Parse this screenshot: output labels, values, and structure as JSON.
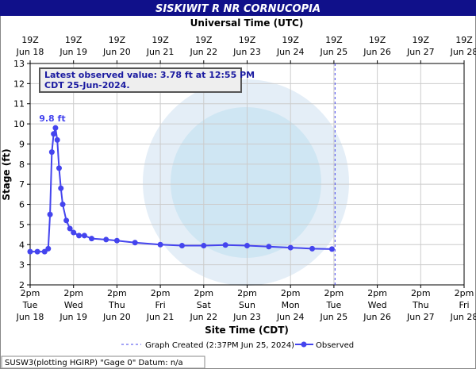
{
  "chart_data": {
    "type": "line",
    "title": "SISKIWIT R NR CORNUCOPIA",
    "x2_label": "Universal Time (UTC)",
    "xlabel": "Site Time (CDT)",
    "ylabel": "Stage (ft)",
    "annotation": [
      "Latest observed value: 3.78 ft at 12:55 PM",
      "CDT 25-Jun-2024."
    ],
    "peak_label": {
      "x": "2024-06-19T04:00",
      "y": 9.8,
      "label": "9.8 ft"
    },
    "graph_created": {
      "x": "2024-06-25T14:37",
      "label": "Graph Created (2:37PM Jun 25, 2024)"
    },
    "footer": "SUSW3(plotting HGIRP) \"Gage 0\" Datum: n/a",
    "grid": true,
    "xlim": [
      "2024-06-18T14:00",
      "2024-06-28T14:00"
    ],
    "ylim": [
      2,
      13
    ],
    "yticks": [
      2,
      3,
      4,
      5,
      6,
      7,
      8,
      9,
      10,
      11,
      12,
      13
    ],
    "xticks": [
      {
        "value": "2024-06-18T14:00",
        "label": "2pm\nTue\nJun 18"
      },
      {
        "value": "2024-06-19T14:00",
        "label": "2pm\nWed\nJun 19"
      },
      {
        "value": "2024-06-20T14:00",
        "label": "2pm\nThu\nJun 20"
      },
      {
        "value": "2024-06-21T14:00",
        "label": "2pm\nFri\nJun 21"
      },
      {
        "value": "2024-06-22T14:00",
        "label": "2pm\nSat\nJun 22"
      },
      {
        "value": "2024-06-23T14:00",
        "label": "2pm\nSun\nJun 23"
      },
      {
        "value": "2024-06-24T14:00",
        "label": "2pm\nMon\nJun 24"
      },
      {
        "value": "2024-06-25T14:00",
        "label": "2pm\nTue\nJun 25"
      },
      {
        "value": "2024-06-26T14:00",
        "label": "2pm\nWed\nJun 26"
      },
      {
        "value": "2024-06-27T14:00",
        "label": "2pm\nThu\nJun 27"
      },
      {
        "value": "2024-06-28T14:00",
        "label": "2pm\nFri\nJun 28"
      }
    ],
    "x2ticks": [
      {
        "value": "2024-06-18T14:00",
        "label": "19Z\nJun 18"
      },
      {
        "value": "2024-06-19T14:00",
        "label": "19Z\nJun 19"
      },
      {
        "value": "2024-06-20T14:00",
        "label": "19Z\nJun 20"
      },
      {
        "value": "2024-06-21T14:00",
        "label": "19Z\nJun 21"
      },
      {
        "value": "2024-06-22T14:00",
        "label": "19Z\nJun 22"
      },
      {
        "value": "2024-06-23T14:00",
        "label": "19Z\nJun 23"
      },
      {
        "value": "2024-06-24T14:00",
        "label": "19Z\nJun 24"
      },
      {
        "value": "2024-06-25T14:00",
        "label": "19Z\nJun 25"
      },
      {
        "value": "2024-06-26T14:00",
        "label": "19Z\nJun 26"
      },
      {
        "value": "2024-06-27T14:00",
        "label": "19Z\nJun 27"
      },
      {
        "value": "2024-06-28T14:00",
        "label": "19Z\nJun 28"
      }
    ],
    "series": [
      {
        "name": "Observed",
        "color": "#4444ee",
        "x": [
          "2024-06-18T14:00",
          "2024-06-18T18:00",
          "2024-06-18T22:00",
          "2024-06-19T00:00",
          "2024-06-19T01:00",
          "2024-06-19T02:00",
          "2024-06-19T03:00",
          "2024-06-19T04:00",
          "2024-06-19T05:00",
          "2024-06-19T06:00",
          "2024-06-19T07:00",
          "2024-06-19T08:00",
          "2024-06-19T10:00",
          "2024-06-19T12:00",
          "2024-06-19T14:00",
          "2024-06-19T17:00",
          "2024-06-19T20:00",
          "2024-06-20T00:00",
          "2024-06-20T08:00",
          "2024-06-20T14:00",
          "2024-06-21T00:00",
          "2024-06-21T14:00",
          "2024-06-22T02:00",
          "2024-06-22T14:00",
          "2024-06-23T02:00",
          "2024-06-23T14:00",
          "2024-06-24T02:00",
          "2024-06-24T14:00",
          "2024-06-25T02:00",
          "2024-06-25T12:55"
        ],
        "values": [
          3.65,
          3.65,
          3.65,
          3.8,
          5.5,
          8.6,
          9.5,
          9.8,
          9.2,
          7.8,
          6.8,
          6.0,
          5.2,
          4.8,
          4.6,
          4.45,
          4.45,
          4.3,
          4.25,
          4.2,
          4.1,
          4.0,
          3.95,
          3.95,
          3.98,
          3.95,
          3.9,
          3.85,
          3.8,
          3.78
        ]
      }
    ]
  }
}
